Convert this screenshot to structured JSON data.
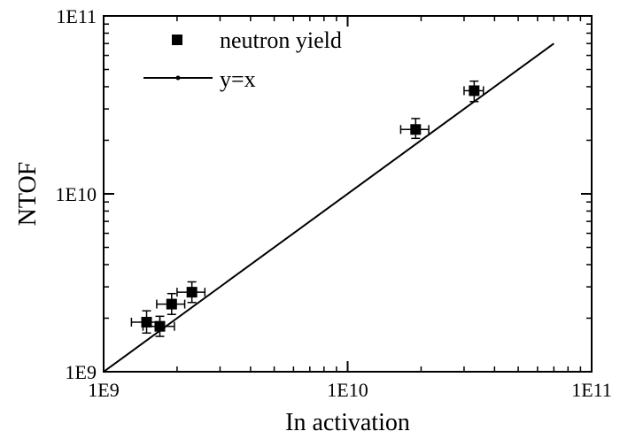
{
  "chart_data": {
    "type": "scatter",
    "xlabel": "In activation",
    "ylabel": "NTOF",
    "xscale": "log",
    "yscale": "log",
    "xlim": [
      1000000000.0,
      100000000000.0
    ],
    "ylim": [
      1000000000.0,
      100000000000.0
    ],
    "x_ticks": [
      {
        "value": 1000000000.0,
        "label": "1E9"
      },
      {
        "value": 10000000000.0,
        "label": "1E10"
      },
      {
        "value": 100000000000.0,
        "label": "1E11"
      }
    ],
    "y_ticks": [
      {
        "value": 1000000000.0,
        "label": "1E9"
      },
      {
        "value": 10000000000.0,
        "label": "1E10"
      },
      {
        "value": 100000000000.0,
        "label": "1E11"
      }
    ],
    "grid": false,
    "legend_position": "top-left",
    "series": [
      {
        "name": "neutron yield",
        "marker": "square",
        "color": "#000000",
        "points": [
          {
            "x": 1500000000.0,
            "y": 1900000000.0,
            "xerr": [
              200000000.0,
              200000000.0
            ],
            "yerr": [
              250000000.0,
              300000000.0
            ]
          },
          {
            "x": 1700000000.0,
            "y": 1800000000.0,
            "xerr": [
              250000000.0,
              250000000.0
            ],
            "yerr": [
              220000000.0,
              250000000.0
            ]
          },
          {
            "x": 1900000000.0,
            "y": 2400000000.0,
            "xerr": [
              250000000.0,
              250000000.0
            ],
            "yerr": [
              300000000.0,
              350000000.0
            ]
          },
          {
            "x": 2300000000.0,
            "y": 2800000000.0,
            "xerr": [
              300000000.0,
              300000000.0
            ],
            "yerr": [
              350000000.0,
              400000000.0
            ]
          },
          {
            "x": 19000000000.0,
            "y": 23000000000.0,
            "xerr": [
              2500000000.0,
              2500000000.0
            ],
            "yerr": [
              2500000000.0,
              3500000000.0
            ]
          },
          {
            "x": 33000000000.0,
            "y": 38000000000.0,
            "xerr": [
              3000000000.0,
              3000000000.0
            ],
            "yerr": [
              5000000000.0,
              5000000000.0
            ]
          }
        ]
      },
      {
        "name": "y=x",
        "type": "line",
        "color": "#000000",
        "x": [
          1000000000.0,
          70000000000.0
        ],
        "y": [
          1000000000.0,
          70000000000.0
        ]
      }
    ]
  }
}
